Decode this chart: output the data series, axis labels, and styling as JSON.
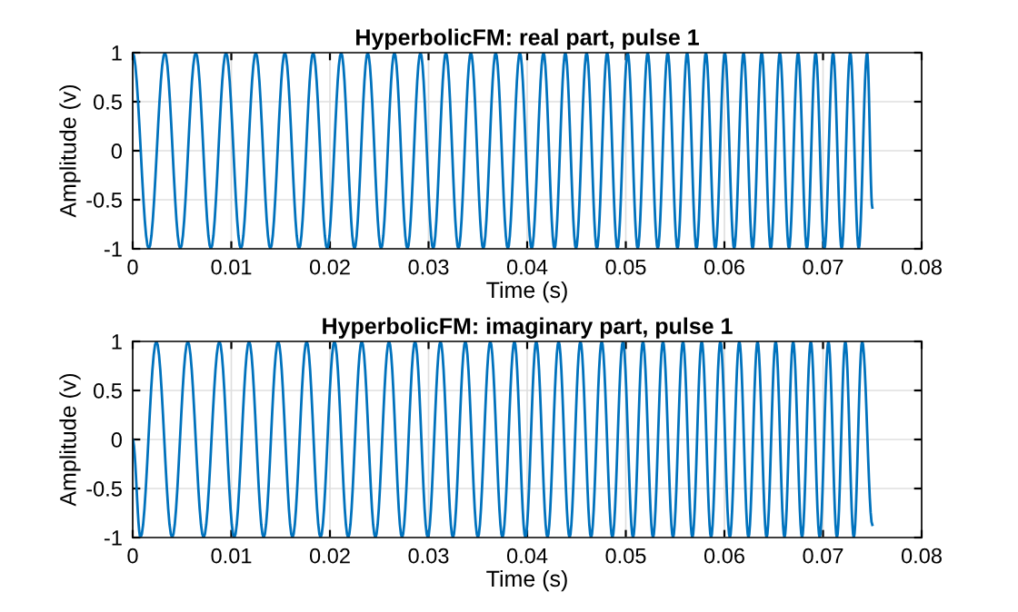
{
  "chart_data": [
    {
      "type": "line",
      "title": "HyperbolicFM: real part, pulse 1",
      "xlabel": "Time (s)",
      "ylabel": "Amplitude (v)",
      "series": [
        {
          "color": "#0072bd",
          "x": [
            0,
            0.00163,
            0.00326,
            0.00483,
            0.0064,
            0.00793,
            0.00946,
            0.01097,
            0.01248,
            0.01396,
            0.01543,
            0.01687,
            0.0183,
            0.01972,
            0.02114,
            0.02249,
            0.02383,
            0.02519,
            0.02654,
            0.02786,
            0.02918,
            0.03047,
            0.03176,
            0.03303,
            0.03429,
            0.03555,
            0.03681,
            0.03804,
            0.03926,
            0.04046,
            0.04166,
            0.04277,
            0.04387,
            0.04495,
            0.04603,
            0.04707,
            0.04811,
            0.04915,
            0.05019,
            0.05121,
            0.05222,
            0.05324,
            0.05425,
            0.05524,
            0.05622,
            0.05717,
            0.05812,
            0.05908,
            0.06004,
            0.06099,
            0.06194,
            0.06286,
            0.06378,
            0.0647,
            0.06562,
            0.06655,
            0.06747,
            0.06836,
            0.06925,
            0.07014,
            0.07102,
            0.07189,
            0.07276,
            0.07362,
            0.07447,
            0.075
          ],
          "values": [
            1,
            -1,
            1,
            -1,
            1,
            -1,
            1,
            -1,
            1,
            -1,
            1,
            -1,
            1,
            -1,
            1,
            -1,
            1,
            -1,
            1,
            -1,
            1,
            -1,
            1,
            -1,
            1,
            -1,
            1,
            -1,
            1,
            -1,
            1,
            -1,
            1,
            -1,
            1,
            -1,
            1,
            -1,
            1,
            -1,
            1,
            -1,
            1,
            -1,
            1,
            -1,
            1,
            -1,
            1,
            -1,
            1,
            -1,
            1,
            -1,
            1,
            -1,
            1,
            -1,
            1,
            -1,
            1,
            -1,
            1,
            -1,
            1,
            -0.58
          ]
        }
      ],
      "xlim": [
        0,
        0.08
      ],
      "xticks": [
        0,
        0.01,
        0.02,
        0.03,
        0.04,
        0.05,
        0.06,
        0.07,
        0.08
      ],
      "ylim": [
        -1,
        1
      ],
      "yticks": [
        -1,
        -0.5,
        0,
        0.5,
        1
      ],
      "grid": true
    },
    {
      "type": "line",
      "title": "HyperbolicFM: imaginary part, pulse 1",
      "xlabel": "Time (s)",
      "ylabel": "Amplitude (v)",
      "series": [
        {
          "color": "#0072bd",
          "x": [
            0,
            0.00079,
            0.0024,
            0.004,
            0.00559,
            0.00719,
            0.00879,
            0.0103,
            0.0118,
            0.01328,
            0.01475,
            0.0162,
            0.01764,
            0.01905,
            0.02046,
            0.02185,
            0.02323,
            0.02461,
            0.02599,
            0.02731,
            0.02863,
            0.02992,
            0.03121,
            0.03247,
            0.03373,
            0.035,
            0.03626,
            0.03749,
            0.03871,
            0.03982,
            0.04092,
            0.04206,
            0.04319,
            0.0443,
            0.0454,
            0.04648,
            0.04756,
            0.04864,
            0.04971,
            0.05073,
            0.05174,
            0.05276,
            0.05377,
            0.05479,
            0.0558,
            0.05675,
            0.0577,
            0.05865,
            0.05959,
            0.06055,
            0.06151,
            0.06244,
            0.06336,
            0.06428,
            0.0652,
            0.06609,
            0.06697,
            0.06787,
            0.06876,
            0.06966,
            0.07055,
            0.07141,
            0.07226,
            0.07312,
            0.07397,
            0.075
          ],
          "values": [
            0,
            -1,
            1,
            -1,
            1,
            -1,
            1,
            -1,
            1,
            -1,
            1,
            -1,
            1,
            -1,
            1,
            -1,
            1,
            -1,
            1,
            -1,
            1,
            -1,
            1,
            -1,
            1,
            -1,
            1,
            -1,
            1,
            -1,
            1,
            -1,
            1,
            -1,
            1,
            -1,
            1,
            -1,
            1,
            -1,
            1,
            -1,
            1,
            -1,
            1,
            -1,
            1,
            -1,
            1,
            -1,
            1,
            -1,
            1,
            -1,
            1,
            -1,
            1,
            -1,
            1,
            -1,
            1,
            -1,
            1,
            -1,
            1,
            -0.87
          ]
        }
      ],
      "xlim": [
        0,
        0.08
      ],
      "xticks": [
        0,
        0.01,
        0.02,
        0.03,
        0.04,
        0.05,
        0.06,
        0.07,
        0.08
      ],
      "ylim": [
        -1,
        1
      ],
      "yticks": [
        -1,
        -0.5,
        0,
        0.5,
        1
      ],
      "grid": true
    }
  ]
}
